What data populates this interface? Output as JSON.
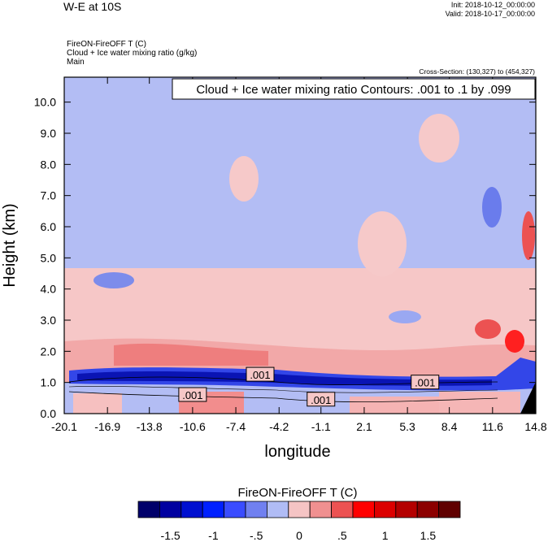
{
  "header": {
    "title": "W-E at 10S",
    "init": "Init: 2018-10-12_00:00:00",
    "valid": "Valid: 2018-10-17_00:00:00",
    "field_label": "FireON-FireOFF T   (C)",
    "contour_field": "Cloud + Ice water mixing ratio   (g/kg)",
    "domain_label": "Main",
    "cross_section": "Cross-Section: (130,327) to (454,327)"
  },
  "chart_data": {
    "type": "heatmap",
    "title": "Cloud + Ice water mixing ratio Contours: .001 to .1 by .099",
    "xlabel": "longitude",
    "ylabel": "Height (km)",
    "x_ticks": [
      "-20.1",
      "-16.9",
      "-13.8",
      "-10.6",
      "-7.4",
      "-4.2",
      "-1.1",
      "2.1",
      "5.3",
      "8.4",
      "11.6",
      "14.8"
    ],
    "y_ticks": [
      "0.0",
      "1.0",
      "2.0",
      "3.0",
      "4.0",
      "5.0",
      "6.0",
      "7.0",
      "8.0",
      "9.0",
      "10.0"
    ],
    "xlim": [
      -20.1,
      14.8
    ],
    "ylim": [
      0.0,
      10.8
    ],
    "contour_labels": [
      {
        "text": ".001",
        "x": -10.6,
        "y": 0.6
      },
      {
        "text": ".001",
        "x": -5.6,
        "y": 1.25
      },
      {
        "text": ".001",
        "x": -1.1,
        "y": 0.45
      },
      {
        "text": ".001",
        "x": 6.6,
        "y": 1.0
      }
    ],
    "colorbar": {
      "title": "FireON-FireOFF T  (C)",
      "labels": [
        "-1.5",
        "-1",
        "-.5",
        "0",
        ".5",
        "1",
        "1.5"
      ],
      "colors": [
        "#00006a",
        "#0000a0",
        "#0010d0",
        "#0020ff",
        "#3a4cff",
        "#7080f0",
        "#b0bcf5",
        "#f5c4c4",
        "#f09090",
        "#ec5252",
        "#ff0000",
        "#dc0000",
        "#b40000",
        "#8c0000",
        "#600000"
      ]
    }
  }
}
